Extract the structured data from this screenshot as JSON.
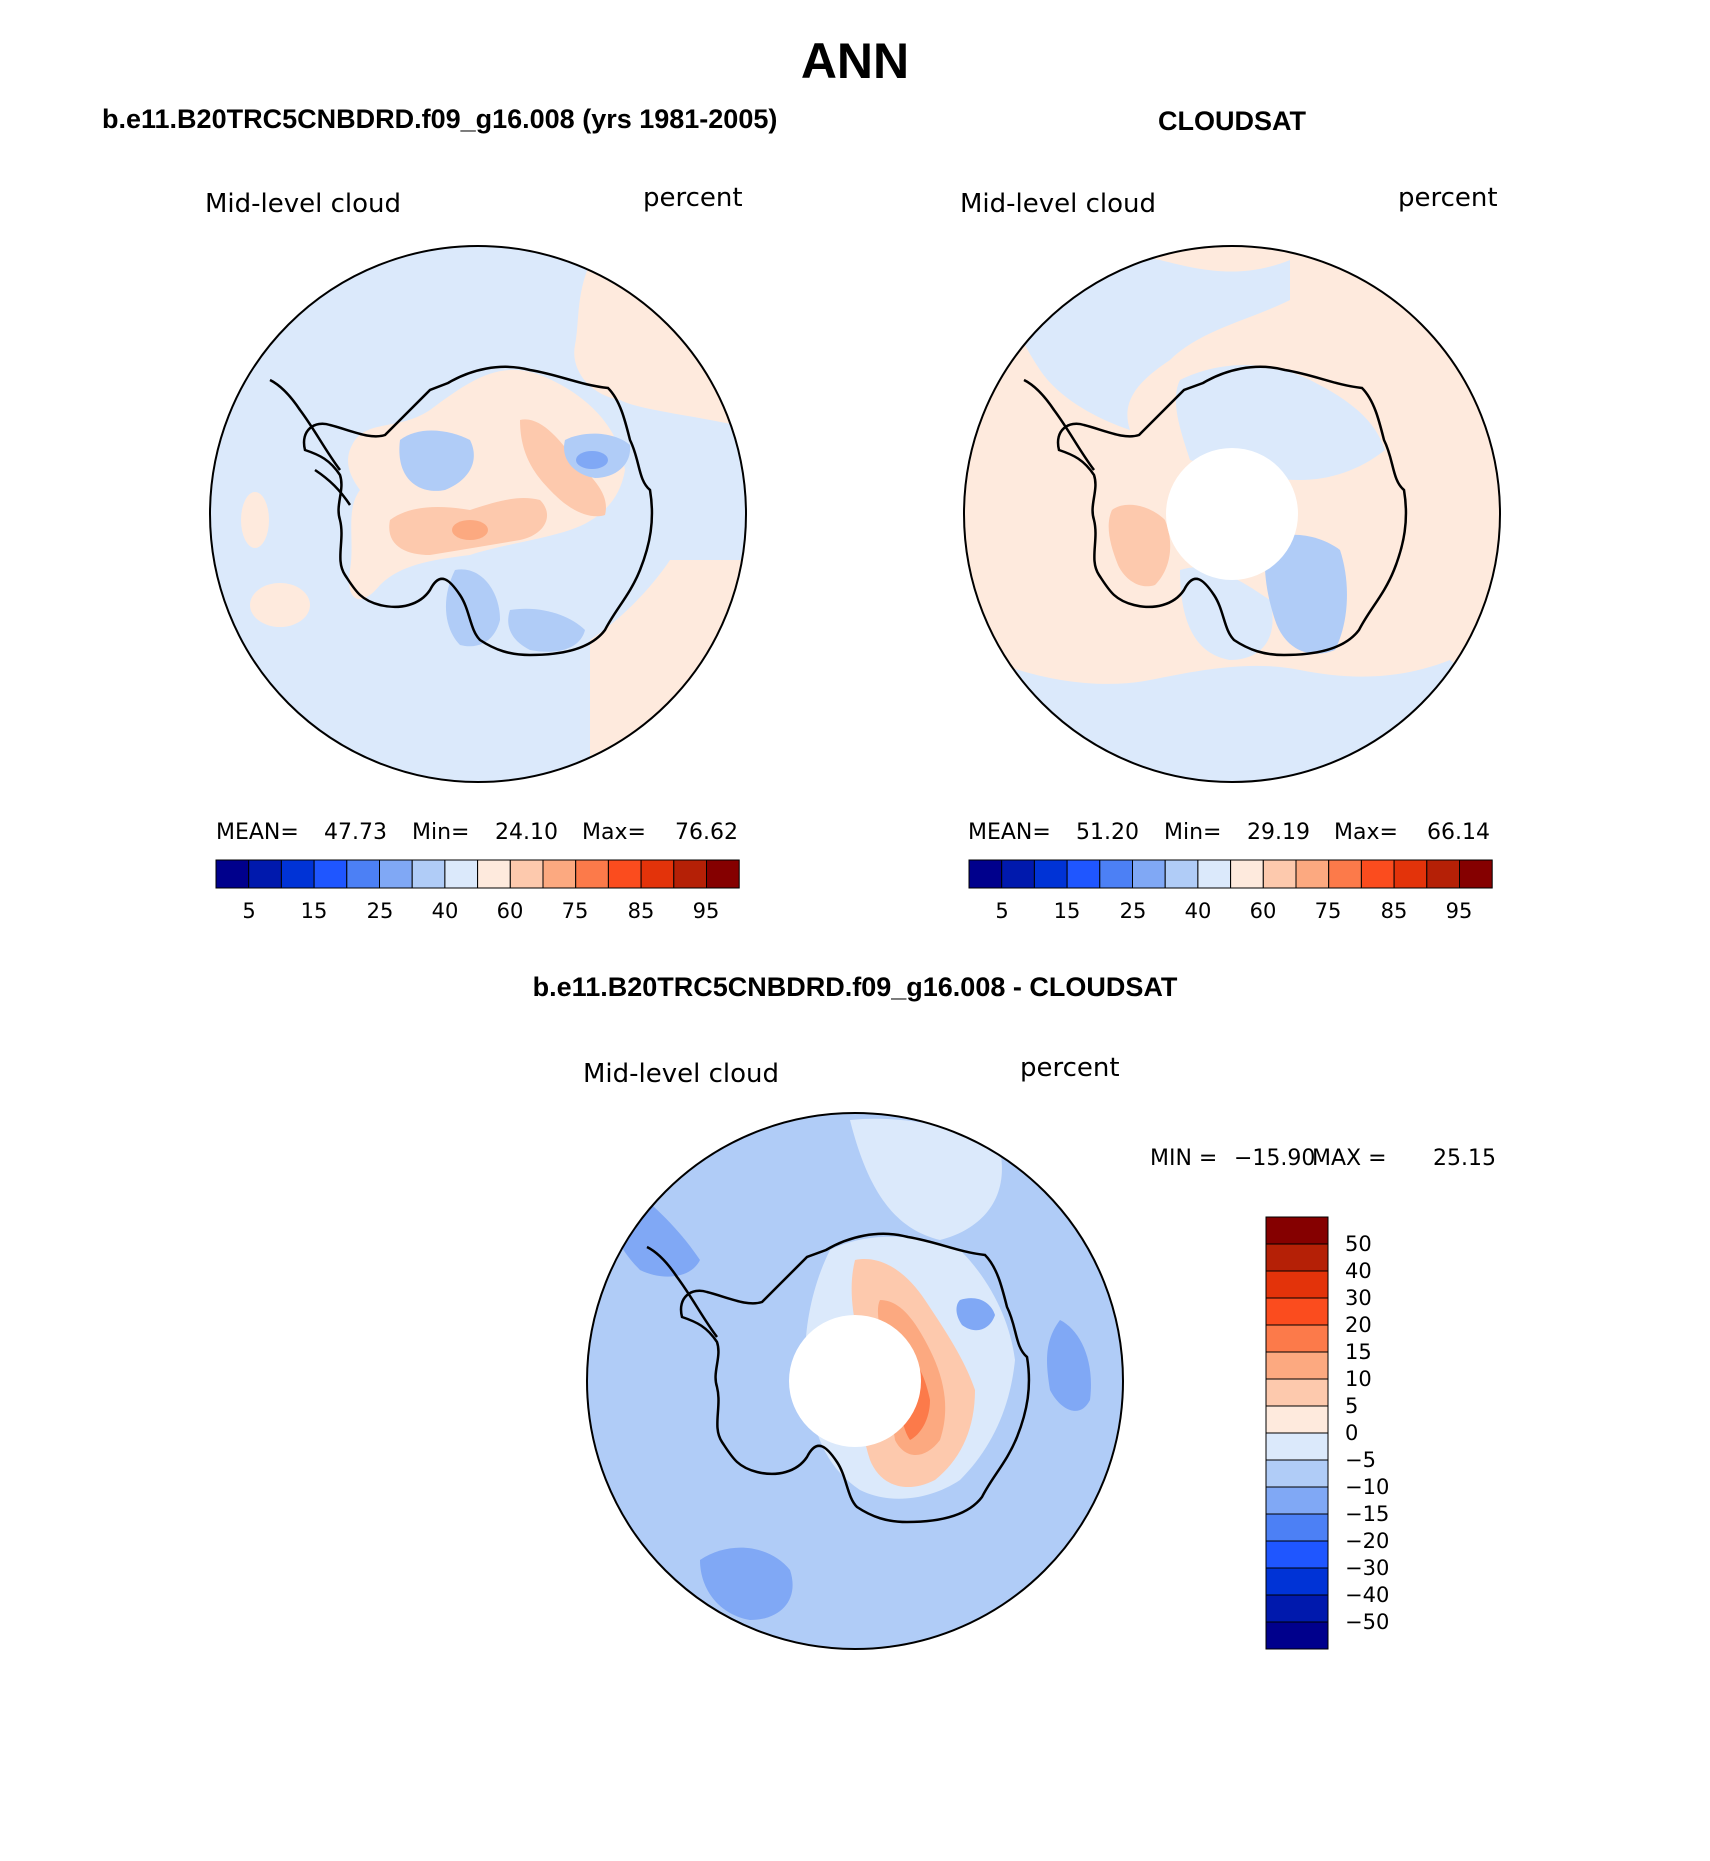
{
  "chart_data": [
    {
      "type": "heatmap",
      "projection": "south-polar-stereographic",
      "season": "ANN",
      "title": "b.e11.B20TRC5CNBDRD.f09_g16.008 (yrs 1981-2005)",
      "variable": "Mid-level cloud",
      "units": "percent",
      "stats": {
        "mean_label": "MEAN=",
        "mean": "47.73",
        "min_label": "Min=",
        "min": "24.10",
        "max_label": "Max=",
        "max": "76.62"
      },
      "levels": [
        "5",
        "15",
        "25",
        "40",
        "60",
        "75",
        "85",
        "95"
      ],
      "colors": [
        "#00008c",
        "#0019ad",
        "#0033d6",
        "#1f56ff",
        "#4c80f5",
        "#80a8f5",
        "#b0ccf7",
        "#dbe9fb",
        "#feeadd",
        "#fdc9ad",
        "#fca980",
        "#fc7a4a",
        "#fb4c1e",
        "#e3330a",
        "#b52006",
        "#850000"
      ],
      "regions": [
        {
          "name": "background",
          "level_index": 7
        },
        {
          "name": "northeast sector",
          "level_index": 8
        },
        {
          "name": "southeast sector",
          "level_index": 8
        },
        {
          "name": "central plateau",
          "level_index": 8
        },
        {
          "name": "plateau maximum",
          "level_index": 9
        },
        {
          "name": "plateau core",
          "level_index": 10
        },
        {
          "name": "east Antarctic minimum",
          "level_index": 6
        },
        {
          "name": "east Antarctic core",
          "level_index": 5
        },
        {
          "name": "Ross shelf sector",
          "level_index": 6
        }
      ]
    },
    {
      "type": "heatmap",
      "projection": "south-polar-stereographic",
      "season": "ANN",
      "title": "CLOUDSAT",
      "variable": "Mid-level cloud",
      "units": "percent",
      "stats": {
        "mean_label": "MEAN=",
        "mean": "51.20",
        "min_label": "Min=",
        "min": "29.19",
        "max_label": "Max=",
        "max": "66.14"
      },
      "levels": [
        "5",
        "15",
        "25",
        "40",
        "60",
        "75",
        "85",
        "95"
      ],
      "colors": [
        "#00008c",
        "#0019ad",
        "#0033d6",
        "#1f56ff",
        "#4c80f5",
        "#80a8f5",
        "#b0ccf7",
        "#dbe9fb",
        "#feeadd",
        "#fdc9ad",
        "#fca980",
        "#fc7a4a",
        "#fb4c1e",
        "#e3330a",
        "#b52006",
        "#850000"
      ],
      "missing_region": "polar gap south of 82S",
      "regions": [
        {
          "name": "background",
          "level_index": 8
        },
        {
          "name": "ice interior",
          "level_index": 7
        },
        {
          "name": "southern ocean band",
          "level_index": 7
        },
        {
          "name": "peninsula maximum",
          "level_index": 9
        },
        {
          "name": "Ross sector minimum",
          "level_index": 6
        }
      ]
    },
    {
      "type": "heatmap",
      "projection": "south-polar-stereographic",
      "season": "ANN",
      "title": "b.e11.B20TRC5CNBDRD.f09_g16.008 - CLOUDSAT",
      "variable": "Mid-level cloud",
      "units": "percent",
      "stats": {
        "min_label": "MIN =",
        "min": "−15.90",
        "max_label": "MAX =",
        "max": "25.15"
      },
      "levels": [
        "50",
        "40",
        "30",
        "20",
        "15",
        "10",
        "5",
        "0",
        "−5",
        "−10",
        "−15",
        "−20",
        "−30",
        "−40",
        "−50"
      ],
      "colors": [
        "#850000",
        "#b52006",
        "#e3330a",
        "#fb4c1e",
        "#fc7a4a",
        "#fca980",
        "#fdc9ad",
        "#feeadd",
        "#dbe9fb",
        "#b0ccf7",
        "#80a8f5",
        "#4c80f5",
        "#1f56ff",
        "#0033d6",
        "#0019ad",
        "#00008c"
      ],
      "missing_region": "polar gap south of 82S",
      "regions": [
        {
          "name": "background",
          "level_index": 9
        },
        {
          "name": "west ocean negative",
          "level_index": 10
        },
        {
          "name": "ice sheet near zero",
          "level_index": 8
        },
        {
          "name": "east plateau positive",
          "level_index": 6
        },
        {
          "name": "east plateau core",
          "level_index": 5
        },
        {
          "name": "east plateau maximum",
          "level_index": 4
        }
      ]
    }
  ],
  "page": {
    "title": "ANN"
  }
}
